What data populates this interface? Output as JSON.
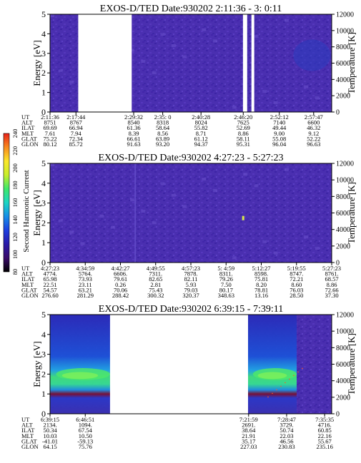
{
  "chart_data": [
    {
      "type": "heatmap",
      "title": "EXOS-D/TED   Date:930202   2:11:36 - 3: 0:11",
      "ylabel": "Energy [eV]",
      "y2label": "Temperature [K]",
      "ylim": [
        0,
        5
      ],
      "y2lim": [
        0,
        12000
      ],
      "yticks": [
        "0",
        "1",
        "2",
        "3",
        "4",
        "5"
      ],
      "y2ticks": [
        "0",
        "2000",
        "4000",
        "6000",
        "8000",
        "10000",
        "12000"
      ],
      "gaps": [
        [
          0.1,
          0.29
        ],
        [
          0.685,
          0.7
        ],
        [
          0.715,
          0.725
        ]
      ],
      "texture": "uniform",
      "readout": {
        "row_labels": [
          "UT",
          "ALT",
          "ILAT",
          "MLT",
          "GLAT",
          "GLON"
        ],
        "columns": [
          {
            "pos": 0.0,
            "values": [
              "2:11:36",
              "8751",
              "69.69",
              "7.61",
              "75.22",
              "80.12"
            ]
          },
          {
            "pos": 0.092,
            "values": [
              "2:17:44",
              "8767",
              "66.94",
              "7.94",
              "72.34",
              "85.72"
            ]
          },
          {
            "pos": 0.297,
            "values": [
              "2:29:32",
              "8540",
              "61.36",
              "8.39",
              "66.61",
              "91.63"
            ]
          },
          {
            "pos": 0.4,
            "values": [
              "2:35: 0",
              "8318",
              "58.64",
              "8.56",
              "63.89",
              "93.20"
            ]
          },
          {
            "pos": 0.536,
            "values": [
              "2:40:28",
              "8024",
              "55.82",
              "8.71",
              "61.12",
              "94.37"
            ]
          },
          {
            "pos": 0.686,
            "values": [
              "2:46:20",
              "7625",
              "52.69",
              "8.86",
              "58.11",
              "95.31"
            ]
          },
          {
            "pos": 0.814,
            "values": [
              "2:52:12",
              "7140",
              "49.44",
              "9.00",
              "55.08",
              "96.04"
            ]
          },
          {
            "pos": 0.936,
            "values": [
              "2:57:47",
              "6600",
              "46.32",
              "9.12",
              "52.22",
              "96.63"
            ]
          }
        ]
      }
    },
    {
      "type": "heatmap",
      "title": "EXOS-D/TED   Date:930202   4:27:23 - 5:27:23",
      "ylabel": "Energy [eV]",
      "y2label": "Temperature [K]",
      "ylim": [
        0,
        5
      ],
      "y2lim": [
        0,
        12000
      ],
      "yticks": [
        "0",
        "1",
        "2",
        "3",
        "4",
        "5"
      ],
      "y2ticks": [
        "0",
        "2000",
        "4000",
        "6000",
        "8000",
        "10000",
        "12000"
      ],
      "gaps": [],
      "texture": "uniform",
      "readout": {
        "row_labels": [
          "UT",
          "ALT",
          "ILAT",
          "MLT",
          "GLAT",
          "GLON"
        ],
        "columns": [
          {
            "pos": 0.0,
            "values": [
              "4:27:23",
              "4774.",
              "65.98",
              "22.51",
              "54.57",
              "276.60"
            ]
          },
          {
            "pos": 0.125,
            "values": [
              "4:34:59",
              "5764.",
              "73.93",
              "23.11",
              "63.21",
              "281.29"
            ]
          },
          {
            "pos": 0.25,
            "values": [
              "4:42:27",
              "6606.",
              "79.61",
              "0.26",
              "70.06",
              "288.42"
            ]
          },
          {
            "pos": 0.375,
            "values": [
              "4:49:55",
              "7311.",
              "82.65",
              "2.81",
              "75.43",
              "300.32"
            ]
          },
          {
            "pos": 0.5,
            "values": [
              "4:57:23",
              "7878.",
              "82.11",
              "5.93",
              "79.03",
              "320.37"
            ]
          },
          {
            "pos": 0.625,
            "values": [
              "5: 4:59",
              "8311.",
              "79.26",
              "7.50",
              "80.17",
              "348.63"
            ]
          },
          {
            "pos": 0.75,
            "values": [
              "5:12:27",
              "8598.",
              "75.81",
              "8.20",
              "78.81",
              "13.16"
            ]
          },
          {
            "pos": 0.875,
            "values": [
              "5:19:55",
              "8747.",
              "72.21",
              "8.60",
              "76.03",
              "28.50"
            ]
          },
          {
            "pos": 1.0,
            "values": [
              "5:27:23",
              "8761.",
              "68.57",
              "8.86",
              "72.66",
              "37.30"
            ]
          }
        ]
      }
    },
    {
      "type": "heatmap",
      "title": "EXOS-D/TED   Date:930202   6:39:15 - 7:39:11",
      "ylabel": "Energy [eV]",
      "y2label": "Temperature [K]",
      "ylim": [
        0,
        5
      ],
      "y2lim": [
        0,
        12000
      ],
      "yticks": [
        "0",
        "1",
        "2",
        "3",
        "4",
        "5"
      ],
      "y2ticks": [
        "0",
        "2000",
        "4000",
        "6000",
        "8000",
        "10000",
        "12000"
      ],
      "gaps": [
        [
          0.213,
          0.703
        ]
      ],
      "texture": "plasma",
      "readout": {
        "row_labels": [
          "UT",
          "ALT",
          "ILAT",
          "MLT",
          "GLAT",
          "GLON"
        ],
        "columns": [
          {
            "pos": 0.0,
            "values": [
              "6:39:15",
              "2134.",
              "50.34",
              "10.03",
              "-41.01",
              "64.15"
            ]
          },
          {
            "pos": 0.125,
            "values": [
              "6:46:51",
              "1094.",
              "67.54",
              "10.50",
              "-59.13",
              "75.76"
            ]
          },
          {
            "pos": 0.705,
            "values": [
              "7:21:59",
              "2691.",
              "38.64",
              "21.91",
              "35.17",
              "227.03"
            ]
          },
          {
            "pos": 0.84,
            "values": [
              "7:28:47",
              "3729.",
              "50.74",
              "22.03",
              "46.56",
              "230.83"
            ]
          },
          {
            "pos": 0.975,
            "values": [
              "7:35:35",
              "4716.",
              "60.85",
              "22.16",
              "55.67",
              "235.16"
            ]
          }
        ]
      }
    }
  ],
  "colorbar": {
    "label": "Second Harmonic Current",
    "ticks": [
      "80",
      "100",
      "120",
      "140",
      "160",
      "180",
      "200",
      "220",
      "240"
    ],
    "colors": [
      "#000000",
      "#3a0a6a",
      "#2a1aa8",
      "#1d3fe0",
      "#178ee8",
      "#1cd6c4",
      "#3ee86a",
      "#c8ee2a",
      "#fbe72a",
      "#f88a1f",
      "#e8221a"
    ]
  }
}
